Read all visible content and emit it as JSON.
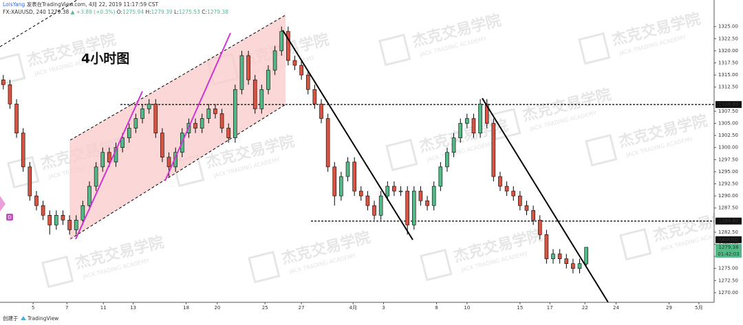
{
  "header": {
    "author": "LoisYang",
    "published": "发表在TradingView.com, 4月 22, 2019 11:17:59 CST",
    "symbol": "FX:XAUUSD, 240",
    "change": "▲ +3.89 (+0.3%)",
    "ohlc_labels": [
      "O:",
      "H:",
      "L:",
      "C:"
    ]
  },
  "annotation": "4小时图",
  "watermark": {
    "text": "杰克交易学院",
    "subtext": "JACK TRADING ACADEMY"
  },
  "footer": {
    "created": "创建于",
    "brand": "TradingView"
  },
  "price_tag": {
    "symbol": "XAUUSD",
    "countdown": "01:42:03"
  },
  "chart_data": {
    "type": "candlestick",
    "ohlc": [
      [
        1314,
        1315,
        1312,
        1313
      ],
      [
        1313,
        1314,
        1308,
        1309
      ],
      [
        1309,
        1310,
        1302,
        1303
      ],
      [
        1303,
        1304,
        1295,
        1296
      ],
      [
        1296,
        1297,
        1289,
        1290
      ],
      [
        1290,
        1291,
        1287,
        1288
      ],
      [
        1288,
        1289,
        1285,
        1286
      ],
      [
        1286,
        1287,
        1282,
        1284
      ],
      [
        1284,
        1287,
        1283,
        1286
      ],
      [
        1286,
        1287,
        1284,
        1285
      ],
      [
        1285,
        1286,
        1282,
        1283
      ],
      [
        1283,
        1286,
        1282,
        1285
      ],
      [
        1285,
        1289,
        1284,
        1288
      ],
      [
        1288,
        1293,
        1287,
        1292
      ],
      [
        1292,
        1297,
        1291,
        1296
      ],
      [
        1296,
        1300,
        1295,
        1299
      ],
      [
        1299,
        1300,
        1296,
        1297
      ],
      [
        1297,
        1301,
        1296,
        1300
      ],
      [
        1300,
        1303,
        1299,
        1302
      ],
      [
        1302,
        1305,
        1301,
        1304
      ],
      [
        1304,
        1307,
        1303,
        1306
      ],
      [
        1306,
        1309,
        1305,
        1308
      ],
      [
        1308,
        1310,
        1307,
        1309
      ],
      [
        1309,
        1310,
        1302,
        1303
      ],
      [
        1303,
        1304,
        1297,
        1298
      ],
      [
        1298,
        1299,
        1294,
        1296
      ],
      [
        1296,
        1300,
        1295,
        1299
      ],
      [
        1299,
        1304,
        1298,
        1303
      ],
      [
        1303,
        1306,
        1302,
        1305
      ],
      [
        1305,
        1306,
        1303,
        1304
      ],
      [
        1304,
        1307,
        1303,
        1306
      ],
      [
        1306,
        1309,
        1305,
        1308
      ],
      [
        1308,
        1309,
        1306,
        1307
      ],
      [
        1307,
        1308,
        1303,
        1304
      ],
      [
        1304,
        1305,
        1301,
        1302
      ],
      [
        1302,
        1313,
        1301,
        1312
      ],
      [
        1312,
        1320,
        1311,
        1319
      ],
      [
        1319,
        1320,
        1313,
        1314
      ],
      [
        1314,
        1315,
        1307,
        1308
      ],
      [
        1308,
        1313,
        1307,
        1312
      ],
      [
        1312,
        1317,
        1311,
        1316
      ],
      [
        1316,
        1321,
        1315,
        1320
      ],
      [
        1320,
        1325,
        1319,
        1324
      ],
      [
        1324,
        1325,
        1317,
        1318
      ],
      [
        1318,
        1319,
        1316,
        1317
      ],
      [
        1317,
        1318,
        1314,
        1315
      ],
      [
        1315,
        1316,
        1311,
        1312
      ],
      [
        1312,
        1313,
        1308,
        1309
      ],
      [
        1309,
        1310,
        1305,
        1306
      ],
      [
        1306,
        1307,
        1295,
        1296
      ],
      [
        1296,
        1297,
        1288,
        1290
      ],
      [
        1290,
        1295,
        1289,
        1294
      ],
      [
        1294,
        1298,
        1293,
        1297
      ],
      [
        1297,
        1298,
        1290,
        1291
      ],
      [
        1291,
        1292,
        1289,
        1290
      ],
      [
        1290,
        1291,
        1287,
        1288
      ],
      [
        1288,
        1289,
        1285,
        1286
      ],
      [
        1286,
        1291,
        1285,
        1290
      ],
      [
        1290,
        1293,
        1289,
        1292
      ],
      [
        1292,
        1293,
        1290,
        1291
      ],
      [
        1291,
        1292,
        1290,
        1291
      ],
      [
        1291,
        1292,
        1282,
        1284
      ],
      [
        1284,
        1292,
        1283,
        1291
      ],
      [
        1291,
        1292,
        1288,
        1289
      ],
      [
        1289,
        1290,
        1287,
        1288
      ],
      [
        1288,
        1293,
        1287,
        1292
      ],
      [
        1292,
        1297,
        1291,
        1296
      ],
      [
        1296,
        1300,
        1295,
        1299
      ],
      [
        1299,
        1303,
        1298,
        1302
      ],
      [
        1302,
        1306,
        1301,
        1305
      ],
      [
        1305,
        1307,
        1304,
        1306
      ],
      [
        1306,
        1307,
        1302,
        1303
      ],
      [
        1303,
        1310,
        1302,
        1309
      ],
      [
        1309,
        1310,
        1304,
        1305
      ],
      [
        1305,
        1306,
        1293,
        1294
      ],
      [
        1294,
        1295,
        1291,
        1292
      ],
      [
        1292,
        1293,
        1290,
        1291
      ],
      [
        1291,
        1292,
        1289,
        1290
      ],
      [
        1290,
        1291,
        1287,
        1288
      ],
      [
        1288,
        1289,
        1286,
        1287
      ],
      [
        1287,
        1288,
        1284,
        1285
      ],
      [
        1285,
        1286,
        1281,
        1282
      ],
      [
        1282,
        1283,
        1276,
        1277
      ],
      [
        1277,
        1279,
        1276,
        1278
      ],
      [
        1278,
        1279,
        1276,
        1277
      ],
      [
        1277,
        1278,
        1275,
        1276
      ],
      [
        1276,
        1277,
        1274,
        1275
      ],
      [
        1275,
        1277,
        1274,
        1276
      ],
      [
        1275.94,
        1279.39,
        1275.53,
        1279.38
      ]
    ],
    "up_color": "#53b987",
    "down_color": "#d75442",
    "xlim": [
      -0.5,
      107.3
    ],
    "ylim": [
      1268,
      1330.5
    ],
    "xticks": [
      {
        "value": 4.5,
        "label": "5"
      },
      {
        "value": 9.6,
        "label": "7"
      },
      {
        "value": 15.1,
        "label": "11"
      },
      {
        "value": 19.6,
        "label": "13"
      },
      {
        "value": 27.6,
        "label": "18"
      },
      {
        "value": 32.3,
        "label": "20"
      },
      {
        "value": 39.5,
        "label": "25"
      },
      {
        "value": 45,
        "label": "27"
      },
      {
        "value": 52.8,
        "label": "4月"
      },
      {
        "value": 57.4,
        "label": "3"
      },
      {
        "value": 65.4,
        "label": "8"
      },
      {
        "value": 70,
        "label": "10"
      },
      {
        "value": 78,
        "label": "15"
      },
      {
        "value": 82.5,
        "label": "17"
      },
      {
        "value": 87.8,
        "label": "22"
      },
      {
        "value": 92.5,
        "label": "24"
      },
      {
        "value": 100.5,
        "label": "29"
      },
      {
        "value": 105,
        "label": "5月"
      }
    ],
    "yticks": [
      {
        "value": 1270,
        "label": "1270.00"
      },
      {
        "value": 1272.5,
        "label": "1272.50"
      },
      {
        "value": 1275,
        "label": "1275.00"
      },
      {
        "value": 1277.5,
        "label": "1277.50"
      },
      {
        "value": 1280,
        "label": "1280.00"
      },
      {
        "value": 1282.5,
        "label": "1282.50"
      },
      {
        "value": 1287.5,
        "label": "1287.50"
      },
      {
        "value": 1290,
        "label": "1290.00"
      },
      {
        "value": 1292.5,
        "label": "1292.50"
      },
      {
        "value": 1295,
        "label": "1295.00"
      },
      {
        "value": 1297.5,
        "label": "1297.50"
      },
      {
        "value": 1300,
        "label": "1300.00"
      },
      {
        "value": 1302.5,
        "label": "1302.50"
      },
      {
        "value": 1305,
        "label": "1305.00"
      },
      {
        "value": 1307.5,
        "label": "1307.50"
      },
      {
        "value": 1312.5,
        "label": "1312.50"
      },
      {
        "value": 1315,
        "label": "1315.00"
      },
      {
        "value": 1317.5,
        "label": "1317.50"
      },
      {
        "value": 1320,
        "label": "1320.00"
      },
      {
        "value": 1322.5,
        "label": "1322.50"
      },
      {
        "value": 1325,
        "label": "1325.00"
      }
    ],
    "horizontal_lines": [
      {
        "value": 1308.89,
        "label": "1308.89"
      },
      {
        "value": 1284.8,
        "label": "1284.80"
      }
    ],
    "grid": false
  }
}
